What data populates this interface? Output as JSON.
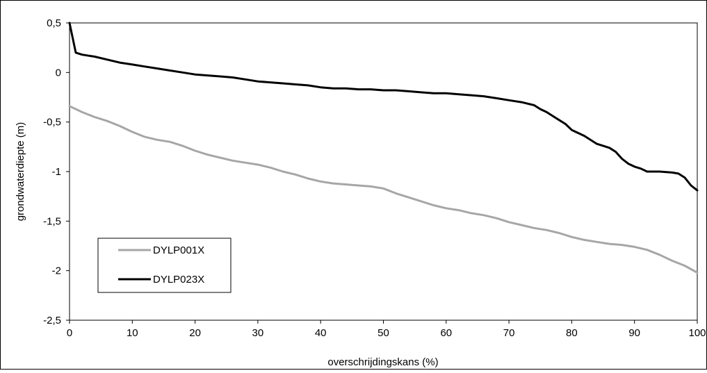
{
  "chart_data": {
    "type": "line",
    "title": "",
    "xlabel": "overschrijdingskans (%)",
    "ylabel": "grondwaterdiepte (m)",
    "xlim": [
      0,
      100
    ],
    "ylim": [
      -2.5,
      0.5
    ],
    "x_ticks": [
      "0",
      "10",
      "20",
      "30",
      "40",
      "50",
      "60",
      "70",
      "80",
      "90",
      "100"
    ],
    "y_ticks": [
      "0,5",
      "0",
      "-0,5",
      "-1",
      "-1,5",
      "-2",
      "-2,5"
    ],
    "grid": false,
    "legend_position": "bottom-left",
    "series": [
      {
        "name": "DYLP001X",
        "color": "#a6a6a6",
        "x": [
          0,
          2,
          4,
          6,
          8,
          10,
          12,
          14,
          16,
          18,
          20,
          22,
          24,
          26,
          28,
          30,
          32,
          34,
          36,
          38,
          40,
          42,
          44,
          46,
          48,
          50,
          52,
          54,
          56,
          58,
          60,
          62,
          64,
          66,
          68,
          70,
          72,
          74,
          76,
          78,
          80,
          82,
          84,
          86,
          88,
          90,
          92,
          94,
          96,
          98,
          100
        ],
        "values": [
          -0.34,
          -0.4,
          -0.45,
          -0.49,
          -0.54,
          -0.6,
          -0.65,
          -0.68,
          -0.7,
          -0.74,
          -0.79,
          -0.83,
          -0.86,
          -0.89,
          -0.91,
          -0.93,
          -0.96,
          -1.0,
          -1.03,
          -1.07,
          -1.1,
          -1.12,
          -1.13,
          -1.14,
          -1.15,
          -1.17,
          -1.22,
          -1.26,
          -1.3,
          -1.34,
          -1.37,
          -1.39,
          -1.42,
          -1.44,
          -1.47,
          -1.51,
          -1.54,
          -1.57,
          -1.59,
          -1.62,
          -1.66,
          -1.69,
          -1.71,
          -1.73,
          -1.74,
          -1.76,
          -1.79,
          -1.84,
          -1.9,
          -1.95,
          -2.02
        ]
      },
      {
        "name": "DYLP023X",
        "color": "#000000",
        "x": [
          0,
          1,
          2,
          4,
          6,
          8,
          10,
          12,
          14,
          16,
          18,
          20,
          22,
          24,
          26,
          28,
          30,
          32,
          34,
          36,
          38,
          40,
          42,
          44,
          46,
          48,
          50,
          52,
          54,
          56,
          58,
          60,
          62,
          64,
          66,
          68,
          70,
          72,
          74,
          75,
          76,
          77,
          78,
          79,
          80,
          82,
          84,
          86,
          87,
          88,
          89,
          90,
          91,
          92,
          94,
          96,
          97,
          98,
          99,
          100
        ],
        "values": [
          0.5,
          0.2,
          0.18,
          0.16,
          0.13,
          0.1,
          0.08,
          0.06,
          0.04,
          0.02,
          0.0,
          -0.02,
          -0.03,
          -0.04,
          -0.05,
          -0.07,
          -0.09,
          -0.1,
          -0.11,
          -0.12,
          -0.13,
          -0.15,
          -0.16,
          -0.16,
          -0.17,
          -0.17,
          -0.18,
          -0.18,
          -0.19,
          -0.2,
          -0.21,
          -0.21,
          -0.22,
          -0.23,
          -0.24,
          -0.26,
          -0.28,
          -0.3,
          -0.33,
          -0.37,
          -0.4,
          -0.44,
          -0.48,
          -0.52,
          -0.58,
          -0.64,
          -0.72,
          -0.76,
          -0.8,
          -0.87,
          -0.92,
          -0.95,
          -0.97,
          -1.0,
          -1.0,
          -1.01,
          -1.02,
          -1.06,
          -1.14,
          -1.19
        ]
      }
    ]
  }
}
